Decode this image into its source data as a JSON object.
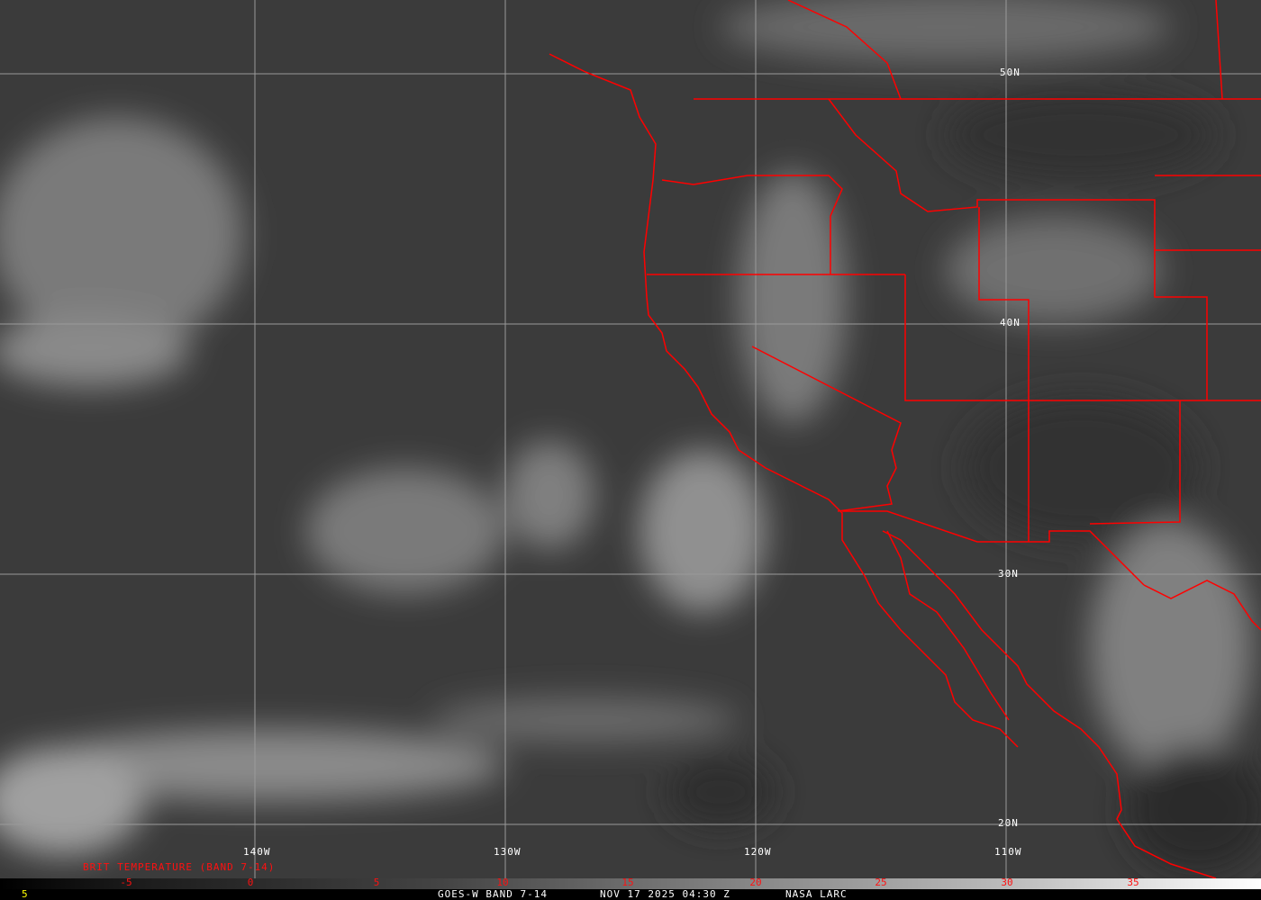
{
  "map": {
    "lat_labels": [
      "50N",
      "40N",
      "30N",
      "20N"
    ],
    "lon_labels": [
      "140W",
      "130W",
      "120W",
      "110W"
    ],
    "border_color": "#ff0000",
    "grid_color": "#9a9a9a"
  },
  "legend": {
    "title": "BRIT TEMPERATURE (BAND 7-14)",
    "ticks": [
      "-5",
      "0",
      "5",
      "10",
      "15",
      "20",
      "25",
      "30",
      "35"
    ]
  },
  "footer": {
    "left_value": "5",
    "product": "GOES-W BAND 7-14",
    "datetime": "NOV 17 2025 04:30 Z",
    "source": "NASA LARC"
  }
}
